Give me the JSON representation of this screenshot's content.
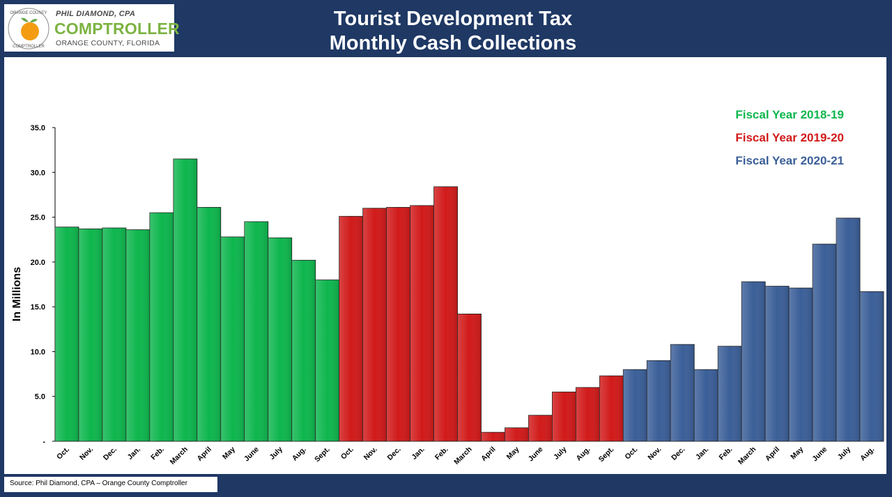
{
  "logo": {
    "seal_top": "ORANGE COUNTY",
    "seal_bottom": "COMPTROLLER",
    "line1": "PHIL DIAMOND, CPA",
    "line2": "COMPTROLLER",
    "line3": "ORANGE COUNTY, FLORIDA"
  },
  "header": {
    "title_line1": "Tourist Development Tax",
    "title_line2": "Monthly Cash Collections"
  },
  "footer": {
    "source": "Source:  Phil Diamond, CPA – Orange County Comptroller"
  },
  "colors": {
    "background": "#1f3864",
    "fy2019": "#0eb64e",
    "fy2020": "#d11a1a",
    "fy2021": "#3b5f98"
  },
  "chart_data": {
    "type": "bar",
    "title": "Tourist Development Tax Monthly Cash Collections",
    "ylabel": "In Millions",
    "ylim": [
      0,
      35
    ],
    "y_ticks": [
      "-",
      "5.0",
      "10.0",
      "15.0",
      "20.0",
      "25.0",
      "30.0",
      "35.0"
    ],
    "grid": false,
    "legend_position": "top-right",
    "series": [
      {
        "name": "Fiscal Year 2018-19",
        "color": "#0eb64e",
        "categories": [
          "Oct.",
          "Nov.",
          "Dec.",
          "Jan.",
          "Feb.",
          "March",
          "April",
          "May",
          "June",
          "July",
          "Aug.",
          "Sept."
        ],
        "values": [
          23.9,
          23.7,
          23.8,
          23.6,
          25.5,
          31.5,
          26.1,
          22.8,
          24.5,
          22.7,
          20.2,
          18.0
        ]
      },
      {
        "name": "Fiscal Year 2019-20",
        "color": "#d11a1a",
        "categories": [
          "Oct.",
          "Nov.",
          "Dec.",
          "Jan.",
          "Feb.",
          "March",
          "April",
          "May",
          "June",
          "July",
          "Aug.",
          "Sept."
        ],
        "values": [
          25.1,
          26.0,
          26.1,
          26.3,
          28.4,
          14.2,
          1.0,
          1.5,
          2.9,
          5.5,
          6.0,
          7.3
        ]
      },
      {
        "name": "Fiscal Year 2020-21",
        "color": "#3b5f98",
        "categories": [
          "Oct.",
          "Nov.",
          "Dec.",
          "Jan.",
          "Feb.",
          "March",
          "April",
          "May",
          "June",
          "July",
          "Aug."
        ],
        "values": [
          8.0,
          9.0,
          10.8,
          8.0,
          10.6,
          17.8,
          17.3,
          17.1,
          22.0,
          24.9,
          16.7
        ]
      }
    ]
  }
}
